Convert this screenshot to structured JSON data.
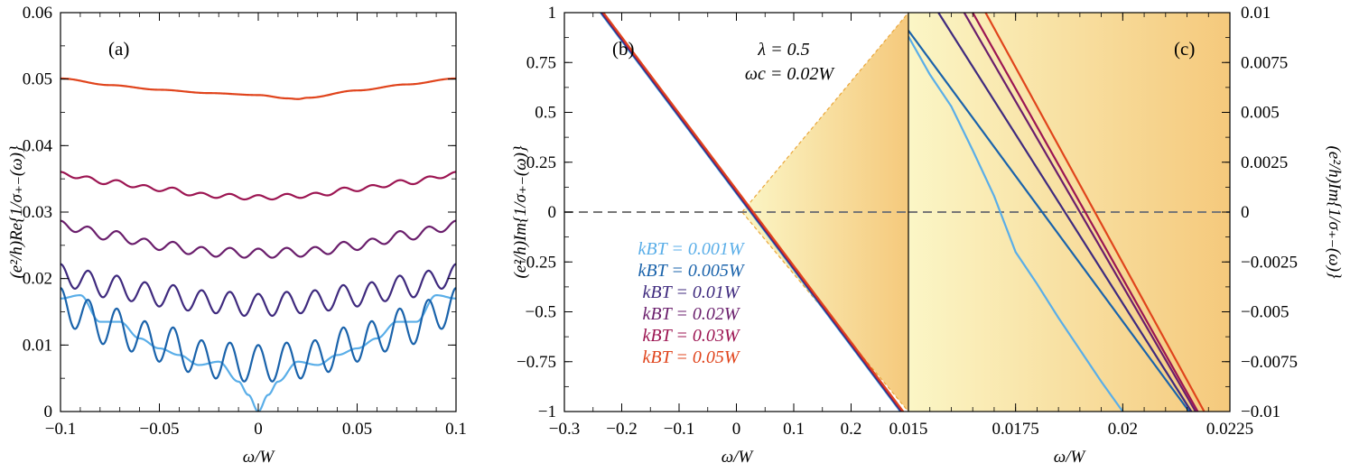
{
  "colors": {
    "temps": [
      "#5aaee8",
      "#1a63ab",
      "#3f2a7e",
      "#6a1e6c",
      "#9c1552",
      "#e0441c"
    ],
    "zero_line": "#777777",
    "shade_light": "#fbf6c6",
    "shade_dark": "#f5c97c",
    "shade_edge": "#e9a63a"
  },
  "panels": {
    "a": {
      "label": "(a)",
      "xlabel": "ω/W",
      "ylabel": "(e²/h)Re{1/σ₊₋(ω)}"
    },
    "b": {
      "label": "(b)",
      "xlabel": "ω/W",
      "ylabel": "(e²/h)Im{1/σ₊₋(ω)}"
    },
    "c": {
      "label": "(c)",
      "xlabel": "ω/W",
      "ylabel": "(e²/h)Im{1/σ₊₋(ω)}"
    }
  },
  "annotation": {
    "line1": "λ = 0.5",
    "line2": "ωc = 0.02W"
  },
  "legend": [
    "kBT = 0.001W",
    "kBT = 0.005W",
    "kBT = 0.01W",
    "kBT = 0.02W",
    "kBT = 0.03W",
    "kBT = 0.05W"
  ],
  "chart_data": [
    {
      "panel": "a",
      "type": "line",
      "xlabel": "ω/W",
      "ylabel": "(e²/h)Re{1/σ₊₋(ω)}",
      "xlim": [
        -0.1,
        0.1
      ],
      "ylim": [
        0,
        0.06
      ],
      "xticks": [
        -0.1,
        -0.05,
        0,
        0.05,
        0.1
      ],
      "xtick_labels": [
        "−0.1",
        "−0.05",
        "0",
        "0.05",
        "0.1"
      ],
      "yticks": [
        0,
        0.01,
        0.02,
        0.03,
        0.04,
        0.05,
        0.06
      ],
      "ytick_labels": [
        "0",
        "0.01",
        "0.02",
        "0.03",
        "0.04",
        "0.05",
        "0.06"
      ],
      "series": [
        {
          "name": "kBT = 0.001W",
          "x": [
            -0.1,
            -0.09,
            -0.08,
            -0.07,
            -0.06,
            -0.05,
            -0.04,
            -0.03,
            -0.02,
            -0.01,
            -0.005,
            0,
            0.005,
            0.01,
            0.02,
            0.03,
            0.04,
            0.05,
            0.06,
            0.07,
            0.08,
            0.09,
            0.1
          ],
          "y": [
            0.017,
            0.0175,
            0.0135,
            0.0135,
            0.011,
            0.0095,
            0.0085,
            0.007,
            0.0075,
            0.0045,
            0.0025,
            0.0,
            0.0025,
            0.0045,
            0.0075,
            0.007,
            0.0085,
            0.0095,
            0.011,
            0.0135,
            0.0135,
            0.0175,
            0.017
          ]
        },
        {
          "name": "kBT = 0.005W",
          "oscillating": true,
          "amplitude": 0.0028,
          "period": 0.0143,
          "x": [
            -0.1,
            -0.075,
            -0.05,
            -0.025,
            0,
            0.025,
            0.05,
            0.075,
            0.1
          ],
          "y": [
            0.0158,
            0.0128,
            0.0103,
            0.0078,
            0.0072,
            0.0078,
            0.0103,
            0.0128,
            0.0158
          ]
        },
        {
          "name": "kBT = 0.01W",
          "oscillating": true,
          "amplitude": 0.0017,
          "period": 0.0143,
          "x": [
            -0.1,
            -0.075,
            -0.05,
            -0.025,
            0,
            0.025,
            0.05,
            0.075,
            0.1
          ],
          "y": [
            0.0205,
            0.0188,
            0.0175,
            0.0165,
            0.016,
            0.0165,
            0.0175,
            0.0188,
            0.0205
          ]
        },
        {
          "name": "kBT = 0.02W",
          "oscillating": true,
          "amplitude": 0.0007,
          "period": 0.0143,
          "x": [
            -0.1,
            -0.075,
            -0.05,
            -0.025,
            0,
            0.025,
            0.05,
            0.075,
            0.1
          ],
          "y": [
            0.028,
            0.0265,
            0.025,
            0.024,
            0.0238,
            0.024,
            0.025,
            0.0265,
            0.028
          ]
        },
        {
          "name": "kBT = 0.03W",
          "oscillating": true,
          "amplitude": 0.00035,
          "period": 0.0143,
          "x": [
            -0.1,
            -0.075,
            -0.05,
            -0.025,
            0,
            0.025,
            0.05,
            0.075,
            0.1
          ],
          "y": [
            0.0357,
            0.0345,
            0.0335,
            0.0325,
            0.0322,
            0.0325,
            0.0335,
            0.0345,
            0.0357
          ]
        },
        {
          "name": "kBT = 0.05W",
          "x": [
            -0.1,
            -0.075,
            -0.05,
            -0.025,
            0,
            0.015,
            0.02,
            0.025,
            0.05,
            0.075,
            0.1
          ],
          "y": [
            0.0501,
            0.0491,
            0.0484,
            0.0479,
            0.0476,
            0.0471,
            0.047,
            0.0472,
            0.0483,
            0.0492,
            0.0501
          ]
        }
      ]
    },
    {
      "panel": "b",
      "type": "line",
      "xlabel": "ω/W",
      "ylabel": "(e²/h)Im{1/σ₊₋(ω)}",
      "xlim": [
        -0.3,
        0.3
      ],
      "ylim": [
        -1,
        1
      ],
      "xticks": [
        -0.3,
        -0.2,
        -0.1,
        0,
        0.1,
        0.2
      ],
      "xtick_labels": [
        "−0.3",
        "−0.2",
        "−0.1",
        "0",
        "0.1",
        "0.2"
      ],
      "yticks": [
        -1,
        -0.75,
        -0.5,
        -0.25,
        0,
        0.25,
        0.5,
        0.75,
        1
      ],
      "ytick_labels": [
        "−1",
        "−0.75",
        "−0.5",
        "−0.25",
        "0",
        "0.25",
        "0.5",
        "0.75",
        "1"
      ],
      "shaded_region": {
        "from": [
          0.01,
          0.0
        ],
        "to_upper": [
          0.3,
          1.0
        ],
        "to_lower": [
          0.3,
          -1.0
        ]
      },
      "series": [
        {
          "name": "kBT = 0.001W",
          "x": [
            -0.237,
            0.286
          ],
          "y": [
            1.0,
            -1.0
          ]
        },
        {
          "name": "kBT = 0.005W",
          "x": [
            -0.236,
            0.287
          ],
          "y": [
            1.0,
            -1.0
          ]
        },
        {
          "name": "kBT = 0.01W",
          "x": [
            -0.235,
            0.288
          ],
          "y": [
            1.0,
            -1.0
          ]
        },
        {
          "name": "kBT = 0.02W",
          "x": [
            -0.234,
            0.289
          ],
          "y": [
            1.0,
            -1.0
          ]
        },
        {
          "name": "kBT = 0.03W",
          "x": [
            -0.233,
            0.29
          ],
          "y": [
            1.0,
            -1.0
          ]
        },
        {
          "name": "kBT = 0.05W",
          "x": [
            -0.232,
            0.291
          ],
          "y": [
            1.0,
            -1.0
          ]
        }
      ]
    },
    {
      "panel": "c",
      "type": "line",
      "xlabel": "ω/W",
      "ylabel": "(e²/h)Im{1/σ₊₋(ω)}",
      "xlim": [
        0.015,
        0.0225
      ],
      "ylim": [
        -0.01,
        0.01
      ],
      "xticks": [
        0.015,
        0.0175,
        0.02,
        0.0225
      ],
      "xtick_labels": [
        "0.015",
        "0.0175",
        "0.02",
        "0.0225"
      ],
      "yticks": [
        -0.01,
        -0.0075,
        -0.005,
        -0.0025,
        0,
        0.0025,
        0.005,
        0.0075,
        0.01
      ],
      "ytick_labels": [
        "−0.01",
        "−0.0075",
        "−0.005",
        "−0.0025",
        "0",
        "0.0025",
        "0.005",
        "0.0075",
        "0.01"
      ],
      "series": [
        {
          "name": "kBT = 0.001W",
          "x": [
            0.015,
            0.0155,
            0.016,
            0.0165,
            0.017,
            0.0175,
            0.018,
            0.0185,
            0.019,
            0.0195,
            0.02
          ],
          "y": [
            0.0088,
            0.0069,
            0.0053,
            0.0031,
            0.0008,
            -0.002,
            -0.0036,
            -0.0053,
            -0.0069,
            -0.0085,
            -0.01
          ]
        },
        {
          "name": "kBT = 0.005W",
          "x": [
            0.015,
            0.02155
          ],
          "y": [
            0.0091,
            -0.01
          ]
        },
        {
          "name": "kBT = 0.01W",
          "x": [
            0.0157,
            0.0216
          ],
          "y": [
            0.01,
            -0.01
          ]
        },
        {
          "name": "kBT = 0.02W",
          "x": [
            0.0163,
            0.0217
          ],
          "y": [
            0.01,
            -0.01
          ]
        },
        {
          "name": "kBT = 0.03W",
          "x": [
            0.0165,
            0.02175
          ],
          "y": [
            0.01,
            -0.01
          ]
        },
        {
          "name": "kBT = 0.05W",
          "x": [
            0.0168,
            0.0219
          ],
          "y": [
            0.01,
            -0.01
          ]
        }
      ]
    }
  ]
}
